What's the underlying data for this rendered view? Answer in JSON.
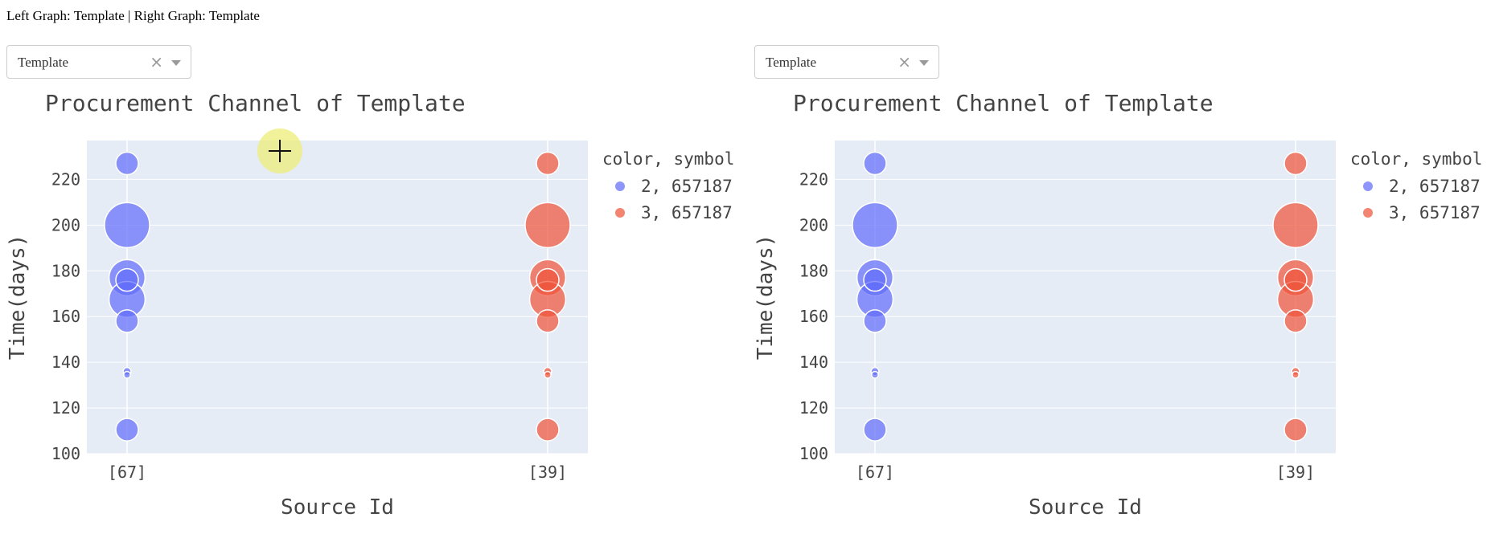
{
  "header": {
    "left_prefix": "Left Graph:",
    "left_value": "Template",
    "separator": "|",
    "right_prefix": "Right Graph:",
    "right_value": "Template"
  },
  "dropdowns": [
    {
      "value": "Template",
      "clear_icon": "×"
    },
    {
      "value": "Template",
      "clear_icon": "×"
    }
  ],
  "colors": {
    "series_a": "#636efa",
    "series_b": "#ef553b",
    "plot_bg": "#e5ecf6"
  },
  "chart_data": [
    {
      "type": "scatter",
      "title": "Procurement Channel of Template",
      "xlabel": "Source Id",
      "ylabel": "Time(days)",
      "categories": [
        "[67]",
        "[39]"
      ],
      "ylim": [
        100,
        237
      ],
      "yticks": [
        "100",
        "120",
        "140",
        "160",
        "180",
        "200",
        "220"
      ],
      "grid": true,
      "legend_title": "color, symbol",
      "legend_position": "top-right",
      "series": [
        {
          "name": "2, 657187",
          "category": "[67]",
          "color": "#636efa",
          "points": [
            {
              "y": 227,
              "s": 2
            },
            {
              "y": 200,
              "s": 4
            },
            {
              "y": 177,
              "s": 3.2
            },
            {
              "y": 176,
              "s": 2
            },
            {
              "y": 167.5,
              "s": 3.2
            },
            {
              "y": 158,
              "s": 2
            },
            {
              "y": 136,
              "s": 0.7
            },
            {
              "y": 134.5,
              "s": 0.6
            },
            {
              "y": 110.5,
              "s": 2
            }
          ]
        },
        {
          "name": "3, 657187",
          "category": "[39]",
          "color": "#ef553b",
          "points": [
            {
              "y": 227,
              "s": 2
            },
            {
              "y": 200,
              "s": 4
            },
            {
              "y": 177,
              "s": 3.2
            },
            {
              "y": 176,
              "s": 2
            },
            {
              "y": 167.5,
              "s": 3.2
            },
            {
              "y": 158,
              "s": 2
            },
            {
              "y": 136,
              "s": 0.7
            },
            {
              "y": 134.5,
              "s": 0.6
            },
            {
              "y": 110.5,
              "s": 2
            }
          ]
        }
      ]
    },
    {
      "type": "scatter",
      "title": "Procurement Channel of Template",
      "xlabel": "Source Id",
      "ylabel": "Time(days)",
      "categories": [
        "[67]",
        "[39]"
      ],
      "ylim": [
        100,
        237
      ],
      "yticks": [
        "100",
        "120",
        "140",
        "160",
        "180",
        "200",
        "220"
      ],
      "grid": true,
      "legend_title": "color, symbol",
      "legend_position": "top-right",
      "series": [
        {
          "name": "2, 657187",
          "category": "[67]",
          "color": "#636efa",
          "points": [
            {
              "y": 227,
              "s": 2
            },
            {
              "y": 200,
              "s": 4
            },
            {
              "y": 177,
              "s": 3.2
            },
            {
              "y": 176,
              "s": 2
            },
            {
              "y": 167.5,
              "s": 3.2
            },
            {
              "y": 158,
              "s": 2
            },
            {
              "y": 136,
              "s": 0.7
            },
            {
              "y": 134.5,
              "s": 0.6
            },
            {
              "y": 110.5,
              "s": 2
            }
          ]
        },
        {
          "name": "3, 657187",
          "category": "[39]",
          "color": "#ef553b",
          "points": [
            {
              "y": 227,
              "s": 2
            },
            {
              "y": 200,
              "s": 4
            },
            {
              "y": 177,
              "s": 3.2
            },
            {
              "y": 176,
              "s": 2
            },
            {
              "y": 167.5,
              "s": 3.2
            },
            {
              "y": 158,
              "s": 2
            },
            {
              "y": 136,
              "s": 0.7
            },
            {
              "y": 134.5,
              "s": 0.6
            },
            {
              "y": 110.5,
              "s": 2
            }
          ]
        }
      ]
    }
  ]
}
